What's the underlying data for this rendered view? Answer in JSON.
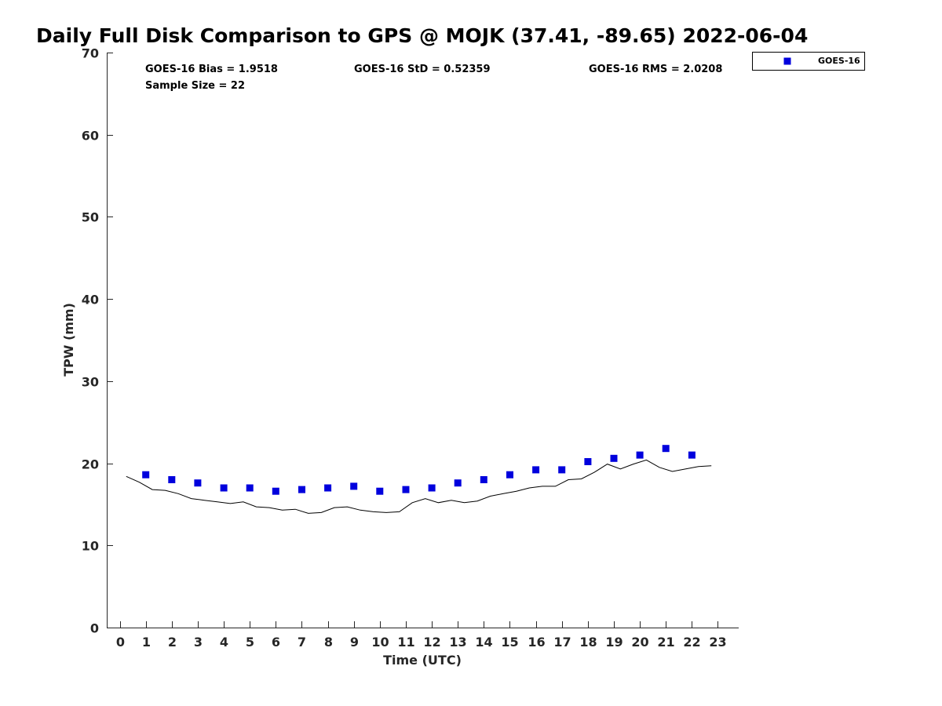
{
  "chart_data": {
    "type": "scatter",
    "title": "Daily Full Disk Comparison to GPS @ MOJK (37.41, -89.65) 2022-06-04",
    "xlabel": "Time (UTC)",
    "ylabel": "TPW (mm)",
    "xlim": [
      -0.5,
      23.8
    ],
    "ylim": [
      0,
      70
    ],
    "x_ticks": [
      0,
      1,
      2,
      3,
      4,
      5,
      6,
      7,
      8,
      9,
      10,
      11,
      12,
      13,
      14,
      15,
      16,
      17,
      18,
      19,
      20,
      21,
      22,
      23
    ],
    "y_ticks": [
      0,
      10,
      20,
      30,
      40,
      50,
      60,
      70
    ],
    "grid": false,
    "legend": {
      "position": "top-right",
      "entries": [
        "GOES-16"
      ]
    },
    "stats": {
      "bias": "GOES-16 Bias = 1.9518",
      "std": "GOES-16 StD = 0.52359",
      "rms": "GOES-16 RMS = 2.0208",
      "sample_size": "Sample Size = 22"
    },
    "series": [
      {
        "name": "GOES-16",
        "kind": "scatter",
        "marker": "square",
        "color": "#0000dd",
        "x": [
          1,
          2,
          3,
          4,
          5,
          6,
          7,
          8,
          9,
          10,
          11,
          12,
          13,
          14,
          15,
          16,
          17,
          18,
          19,
          20,
          21,
          22
        ],
        "y": [
          18.6,
          18.0,
          17.6,
          17.0,
          17.0,
          16.6,
          16.8,
          17.0,
          17.2,
          16.6,
          16.8,
          17.0,
          17.6,
          18.0,
          18.6,
          19.2,
          19.2,
          20.2,
          20.6,
          21.0,
          21.8,
          21.0
        ]
      },
      {
        "kind": "line",
        "color": "#000000",
        "x": [
          0.25,
          0.75,
          1.25,
          1.75,
          2.25,
          2.75,
          3.25,
          3.75,
          4.25,
          4.75,
          5.25,
          5.75,
          6.25,
          6.75,
          7.25,
          7.75,
          8.25,
          8.75,
          9.25,
          9.75,
          10.25,
          10.75,
          11.25,
          11.75,
          12.25,
          12.75,
          13.25,
          13.75,
          14.25,
          14.75,
          15.25,
          15.75,
          16.25,
          16.75,
          17.25,
          17.75,
          18.25,
          18.75,
          19.25,
          19.75,
          20.25,
          20.75,
          21.25,
          21.75,
          22.25,
          22.75
        ],
        "y": [
          18.4,
          17.7,
          16.8,
          16.7,
          16.3,
          15.7,
          15.5,
          15.3,
          15.1,
          15.3,
          14.7,
          14.6,
          14.3,
          14.4,
          13.9,
          14.0,
          14.6,
          14.7,
          14.3,
          14.1,
          14.0,
          14.1,
          15.2,
          15.7,
          15.2,
          15.5,
          15.2,
          15.4,
          16.0,
          16.3,
          16.6,
          17.0,
          17.2,
          17.2,
          18.0,
          18.1,
          18.9,
          19.9,
          19.3,
          19.9,
          20.4,
          19.5,
          19.0,
          19.3,
          19.6,
          19.7
        ]
      }
    ]
  },
  "colors": {
    "marker": "#0000dd",
    "line": "#000000",
    "axis": "#262626",
    "background": "#ffffff"
  }
}
